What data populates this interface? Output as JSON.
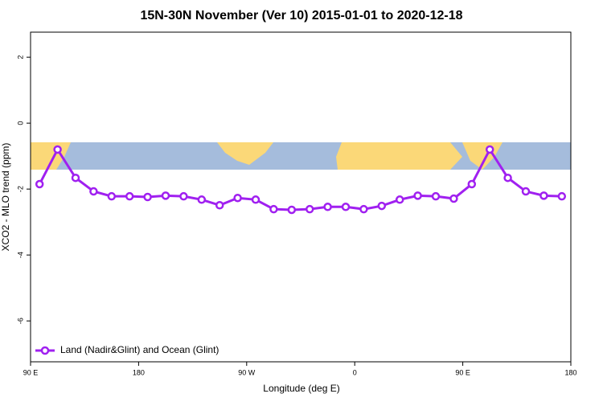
{
  "chart_data": {
    "type": "line",
    "title": "15N-30N November (Ver 10)   2015-01-01 to 2020-12-18",
    "x_label": "Longitude (deg E)",
    "y_label": "XCO2 - MLO trend (ppm)",
    "x": [
      97.5,
      112.5,
      127.5,
      142.5,
      157.5,
      172.5,
      187.5,
      202.5,
      217.5,
      232.5,
      247.5,
      262.5,
      277.5,
      292.5,
      307.5,
      322.5,
      337.5,
      352.5,
      367.5,
      382.5,
      397.5,
      412.5,
      427.5,
      442.5,
      457.5,
      472.5,
      487.5,
      502.5,
      517.5,
      532.5
    ],
    "series": [
      {
        "name": "Land (Nadir&Glint) and Ocean (Glint)",
        "color": "#a020f0",
        "values": [
          -1.85,
          -0.8,
          -1.66,
          -2.07,
          -2.22,
          -2.22,
          -2.24,
          -2.2,
          -2.22,
          -2.32,
          -2.49,
          -2.27,
          -2.32,
          -2.61,
          -2.63,
          -2.61,
          -2.54,
          -2.54,
          -2.61,
          -2.51,
          -2.32,
          -2.2,
          -2.22,
          -2.29,
          -1.85,
          -0.8,
          -1.66,
          -2.07,
          -2.2,
          -2.22
        ]
      }
    ],
    "xlim": [
      90,
      540
    ],
    "xticks": [
      {
        "value": 90,
        "label": "90 E"
      },
      180,
      {
        "value": 270,
        "label": "90 W"
      },
      {
        "value": 360,
        "label": "0"
      },
      {
        "value": 450,
        "label": "90 E"
      },
      {
        "value": 540,
        "label": "180"
      }
    ],
    "ylim": [
      -7.24,
      2.76
    ],
    "yticks": [
      -6,
      -4,
      -2,
      0,
      2
    ],
    "legend": "bottom-left"
  }
}
